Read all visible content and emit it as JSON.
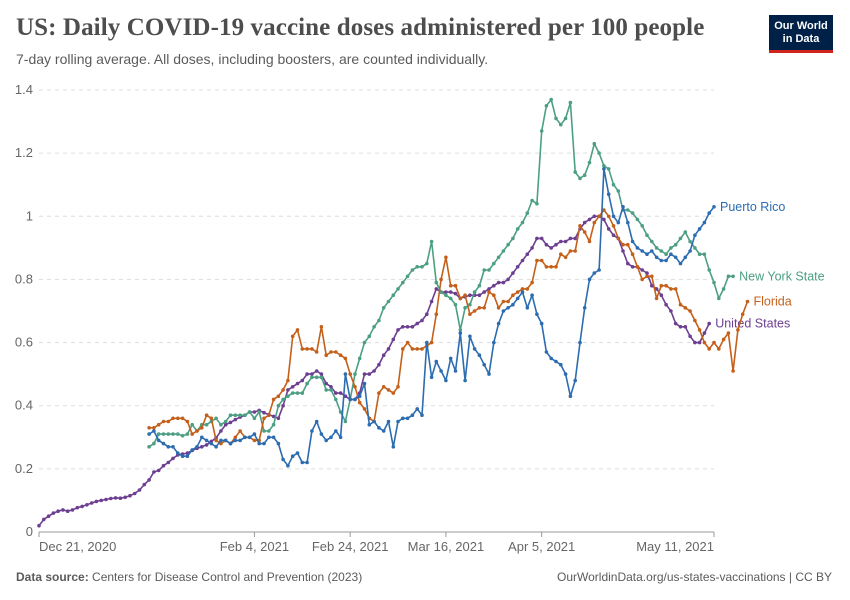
{
  "header": {
    "title": "US: Daily COVID-19 vaccine doses administered per 100 people",
    "subtitle": "7-day rolling average. All doses, including boosters, are counted individually."
  },
  "logo": {
    "line1": "Our World",
    "line2": "in Data"
  },
  "footer": {
    "source_label": "Data source:",
    "source_text": "Centers for Disease Control and Prevention (2023)",
    "url": "OurWorldinData.org/us-states-vaccinations | CC BY"
  },
  "chart_data": {
    "type": "line",
    "start_date": "2020-12-21",
    "xlim": [
      0,
      141
    ],
    "ylim": [
      0,
      1.4
    ],
    "yticks": [
      0,
      0.2,
      0.4,
      0.6,
      0.8,
      1,
      1.2,
      1.4
    ],
    "ytick_labels": [
      "0",
      "0.2",
      "0.4",
      "0.6",
      "0.8",
      "1",
      "1.2",
      "1.4"
    ],
    "xticks": [
      0,
      45,
      65,
      85,
      105,
      141
    ],
    "xtick_labels": [
      "Dec 21, 2020",
      "Feb 4, 2021",
      "Feb 24, 2021",
      "Mar 16, 2021",
      "Apr 5, 2021",
      "May 11, 2021"
    ],
    "grid": "horizontal dashed",
    "legend": "right (end labels)",
    "series": [
      {
        "name": "United States",
        "color": "#6d3e91",
        "start": 0,
        "values": [
          0.02,
          0.04,
          0.05,
          0.06,
          0.066,
          0.07,
          0.066,
          0.07,
          0.077,
          0.081,
          0.086,
          0.092,
          0.097,
          0.1,
          0.103,
          0.106,
          0.108,
          0.107,
          0.11,
          0.115,
          0.122,
          0.133,
          0.15,
          0.165,
          0.19,
          0.195,
          0.21,
          0.22,
          0.233,
          0.244,
          0.247,
          0.25,
          0.258,
          0.265,
          0.27,
          0.276,
          0.287,
          0.298,
          0.32,
          0.34,
          0.347,
          0.356,
          0.364,
          0.37,
          0.38,
          0.38,
          0.385,
          0.378,
          0.372,
          0.366,
          0.36,
          0.4,
          0.45,
          0.46,
          0.47,
          0.48,
          0.5,
          0.5,
          0.51,
          0.5,
          0.47,
          0.46,
          0.44,
          0.44,
          0.43,
          0.42,
          0.42,
          0.44,
          0.5,
          0.5,
          0.51,
          0.53,
          0.56,
          0.58,
          0.61,
          0.64,
          0.65,
          0.65,
          0.65,
          0.66,
          0.67,
          0.69,
          0.73,
          0.77,
          0.76,
          0.76,
          0.76,
          0.755,
          0.74,
          0.745,
          0.75,
          0.75,
          0.75,
          0.76,
          0.77,
          0.78,
          0.79,
          0.79,
          0.8,
          0.82,
          0.84,
          0.86,
          0.88,
          0.9,
          0.93,
          0.93,
          0.91,
          0.9,
          0.91,
          0.92,
          0.92,
          0.93,
          0.93,
          0.96,
          0.98,
          0.99,
          1.0,
          1.0,
          0.99,
          0.96,
          0.94,
          0.93,
          0.89,
          0.85,
          0.84,
          0.84,
          0.83,
          0.82,
          0.78,
          0.77,
          0.75,
          0.72,
          0.7,
          0.66,
          0.65,
          0.65,
          0.62,
          0.6,
          0.6,
          0.63,
          0.66
        ]
      },
      {
        "name": "New York State",
        "color": "#4c9f82",
        "start": 23,
        "values": [
          0.27,
          0.28,
          0.31,
          0.31,
          0.31,
          0.31,
          0.31,
          0.305,
          0.31,
          0.34,
          0.32,
          0.34,
          0.34,
          0.35,
          0.36,
          0.34,
          0.35,
          0.37,
          0.37,
          0.37,
          0.37,
          0.38,
          0.36,
          0.38,
          0.32,
          0.32,
          0.34,
          0.4,
          0.42,
          0.43,
          0.44,
          0.44,
          0.44,
          0.47,
          0.49,
          0.49,
          0.49,
          0.45,
          0.45,
          0.42,
          0.38,
          0.35,
          0.42,
          0.5,
          0.55,
          0.6,
          0.62,
          0.65,
          0.67,
          0.71,
          0.73,
          0.75,
          0.77,
          0.79,
          0.81,
          0.83,
          0.84,
          0.84,
          0.85,
          0.92,
          0.79,
          0.76,
          0.75,
          0.74,
          0.72,
          0.64,
          0.71,
          0.72,
          0.76,
          0.78,
          0.83,
          0.83,
          0.85,
          0.87,
          0.89,
          0.91,
          0.93,
          0.96,
          0.98,
          1.01,
          1.05,
          1.04,
          1.27,
          1.35,
          1.37,
          1.31,
          1.29,
          1.31,
          1.36,
          1.14,
          1.12,
          1.13,
          1.17,
          1.23,
          1.2,
          1.16,
          1.15,
          1.1,
          1.08,
          1.02,
          1.02,
          1.01,
          0.99,
          0.97,
          0.94,
          0.92,
          0.9,
          0.89,
          0.88,
          0.9,
          0.91,
          0.93,
          0.95,
          0.92,
          0.9,
          0.88,
          0.88,
          0.83,
          0.79,
          0.74,
          0.77,
          0.81,
          0.81
        ]
      },
      {
        "name": "Florida",
        "color": "#c4601a",
        "start": 23,
        "values": [
          0.33,
          0.33,
          0.34,
          0.35,
          0.35,
          0.36,
          0.36,
          0.36,
          0.35,
          0.31,
          0.32,
          0.33,
          0.37,
          0.36,
          0.29,
          0.28,
          0.29,
          0.28,
          0.3,
          0.32,
          0.3,
          0.3,
          0.29,
          0.29,
          0.36,
          0.37,
          0.42,
          0.43,
          0.45,
          0.48,
          0.62,
          0.64,
          0.58,
          0.58,
          0.58,
          0.57,
          0.65,
          0.56,
          0.57,
          0.57,
          0.56,
          0.55,
          0.5,
          0.46,
          0.41,
          0.39,
          0.36,
          0.35,
          0.44,
          0.46,
          0.45,
          0.44,
          0.46,
          0.58,
          0.6,
          0.58,
          0.58,
          0.58,
          0.59,
          0.6,
          0.69,
          0.8,
          0.87,
          0.78,
          0.78,
          0.74,
          0.75,
          0.69,
          0.7,
          0.71,
          0.71,
          0.76,
          0.75,
          0.71,
          0.73,
          0.73,
          0.75,
          0.76,
          0.77,
          0.77,
          0.79,
          0.86,
          0.86,
          0.84,
          0.84,
          0.84,
          0.88,
          0.87,
          0.89,
          0.89,
          0.97,
          0.95,
          0.92,
          0.98,
          1.0,
          1.02,
          1.0,
          0.97,
          0.93,
          0.91,
          0.91,
          0.88,
          0.84,
          0.8,
          0.81,
          0.81,
          0.74,
          0.78,
          0.78,
          0.77,
          0.77,
          0.72,
          0.71,
          0.7,
          0.67,
          0.64,
          0.6,
          0.58,
          0.6,
          0.58,
          0.61,
          0.63,
          0.51,
          0.64,
          0.69,
          0.73
        ]
      },
      {
        "name": "Puerto Rico",
        "color": "#2c6cb0",
        "start": 23,
        "values": [
          0.31,
          0.32,
          0.29,
          0.28,
          0.27,
          0.27,
          0.25,
          0.24,
          0.24,
          0.26,
          0.27,
          0.3,
          0.29,
          0.28,
          0.27,
          0.29,
          0.29,
          0.28,
          0.29,
          0.29,
          0.3,
          0.3,
          0.31,
          0.28,
          0.28,
          0.3,
          0.3,
          0.28,
          0.23,
          0.21,
          0.24,
          0.25,
          0.22,
          0.22,
          0.32,
          0.35,
          0.31,
          0.29,
          0.3,
          0.32,
          0.3,
          0.5,
          0.42,
          0.42,
          0.43,
          0.47,
          0.34,
          0.35,
          0.33,
          0.32,
          0.35,
          0.27,
          0.35,
          0.36,
          0.36,
          0.37,
          0.39,
          0.37,
          0.6,
          0.49,
          0.54,
          0.51,
          0.48,
          0.55,
          0.51,
          0.63,
          0.48,
          0.62,
          0.58,
          0.56,
          0.53,
          0.5,
          0.6,
          0.66,
          0.7,
          0.71,
          0.72,
          0.74,
          0.76,
          0.71,
          0.75,
          0.69,
          0.66,
          0.57,
          0.55,
          0.54,
          0.53,
          0.5,
          0.43,
          0.48,
          0.6,
          0.71,
          0.8,
          0.82,
          0.83,
          1.15,
          1.07,
          1.0,
          0.98,
          1.03,
          0.98,
          0.92,
          0.9,
          0.89,
          0.88,
          0.89,
          0.87,
          0.86,
          0.86,
          0.88,
          0.87,
          0.85,
          0.87,
          0.89,
          0.94,
          0.96,
          0.98,
          1.01,
          1.03
        ]
      }
    ]
  }
}
